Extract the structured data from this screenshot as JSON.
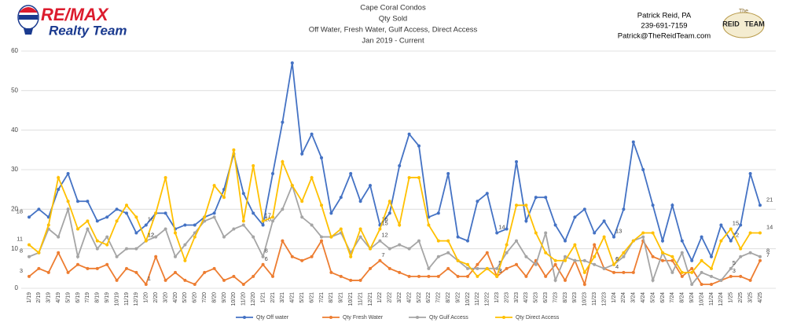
{
  "header": {
    "logo_brand": "RE/MAX",
    "logo_team": "Realty Team",
    "contact_name": "Patrick Reid, PA",
    "contact_phone": "239-691-7159",
    "contact_email": "Patrick@TheReidTeam.com",
    "badge_the": "The",
    "badge_name": "REID",
    "badge_team": "TEAM"
  },
  "chart_data": {
    "type": "line",
    "title": "Cape Coral Condos",
    "subtitle": [
      "Qty Sold",
      "Off Water, Fresh Water, Gulf Access, Direct Access",
      "Jan 2019 - Current"
    ],
    "categories": [
      "1/19",
      "2/19",
      "3/19",
      "4/19",
      "5/19",
      "6/19",
      "7/19",
      "8/19",
      "9/19",
      "10/19",
      "11/19",
      "12/19",
      "1/20",
      "2/20",
      "3/20",
      "4/20",
      "5/20",
      "6/20",
      "7/20",
      "8/20",
      "9/20",
      "10/20",
      "11/20",
      "12/20",
      "1/21",
      "2/21",
      "3/21",
      "4/21",
      "5/21",
      "6/21",
      "7/21",
      "8/21",
      "9/21",
      "10/21",
      "11/21",
      "12/21",
      "1/22",
      "2/22",
      "3/22",
      "4/22",
      "5/22",
      "6/22",
      "7/22",
      "8/22",
      "9/22",
      "10/22",
      "11/22",
      "12/22",
      "1/23",
      "2/23",
      "3/23",
      "4/23",
      "5/23",
      "6/23",
      "7/23",
      "8/23",
      "9/23",
      "10/23",
      "11/23",
      "12/23",
      "1/24",
      "2/24",
      "3/24",
      "4/24",
      "5/24",
      "6/24",
      "7/24",
      "8/24",
      "9/24",
      "10/24",
      "11/24",
      "12/24",
      "1/25",
      "2/25",
      "3/25",
      "4/25"
    ],
    "series": [
      {
        "name": "Qty Off water",
        "color": "#4472c4",
        "values": [
          18,
          20,
          18,
          25,
          29,
          22,
          22,
          17,
          18,
          20,
          19,
          14,
          16,
          19,
          19,
          15,
          16,
          16,
          18,
          19,
          25,
          34,
          24,
          19,
          16,
          29,
          42,
          57,
          34,
          39,
          33,
          19,
          23,
          29,
          22,
          26,
          16,
          19,
          31,
          39,
          36,
          18,
          19,
          29,
          13,
          12,
          22,
          24,
          14,
          15,
          32,
          17,
          23,
          23,
          16,
          12,
          18,
          20,
          14,
          17,
          13,
          20,
          37,
          30,
          21,
          12,
          21,
          12,
          7,
          13,
          8,
          16,
          12,
          16,
          29,
          21
        ]
      },
      {
        "name": "Qty Fresh Water",
        "color": "#ed7d31",
        "values": [
          3,
          5,
          4,
          9,
          4,
          6,
          5,
          5,
          6,
          2,
          5,
          4,
          1,
          8,
          2,
          4,
          2,
          1,
          4,
          5,
          2,
          3,
          1,
          3,
          6,
          3,
          12,
          8,
          7,
          8,
          12,
          4,
          3,
          2,
          2,
          5,
          7,
          5,
          4,
          3,
          3,
          3,
          3,
          5,
          3,
          3,
          6,
          9,
          3,
          5,
          6,
          3,
          7,
          3,
          6,
          2,
          7,
          1,
          11,
          5,
          4,
          4,
          4,
          12,
          8,
          7,
          7,
          3,
          5,
          1,
          1,
          2,
          3,
          3,
          2,
          7
        ]
      },
      {
        "name": "Qty Gulf Access",
        "color": "#a5a5a5",
        "values": [
          8,
          9,
          15,
          13,
          20,
          8,
          15,
          10,
          13,
          8,
          10,
          10,
          12,
          13,
          15,
          8,
          11,
          14,
          17,
          18,
          13,
          15,
          16,
          13,
          8,
          17,
          20,
          26,
          18,
          16,
          13,
          13,
          14,
          9,
          13,
          10,
          12,
          10,
          11,
          10,
          12,
          5,
          8,
          9,
          7,
          5,
          5,
          5,
          5,
          9,
          12,
          8,
          6,
          14,
          2,
          8,
          7,
          7,
          6,
          5,
          6,
          8,
          12,
          13,
          2,
          9,
          4,
          9,
          1,
          4,
          3,
          2,
          5,
          8,
          9,
          8
        ]
      },
      {
        "name": "Qty Direct Access",
        "color": "#ffc000",
        "values": [
          11,
          9,
          16,
          28,
          22,
          15,
          17,
          12,
          11,
          17,
          21,
          18,
          12,
          19,
          28,
          14,
          7,
          13,
          18,
          26,
          23,
          35,
          17,
          31,
          17,
          18,
          32,
          26,
          22,
          28,
          21,
          13,
          15,
          8,
          15,
          10,
          15,
          22,
          16,
          28,
          28,
          16,
          12,
          12,
          7,
          6,
          3,
          5,
          3,
          11,
          21,
          21,
          14,
          9,
          7,
          7,
          11,
          4,
          8,
          13,
          6,
          9,
          12,
          14,
          14,
          9,
          8,
          4,
          4,
          7,
          5,
          12,
          15,
          10,
          14,
          14
        ]
      }
    ],
    "ylim": [
      0,
      60
    ],
    "yticks": [
      0,
      10,
      20,
      30,
      40,
      50,
      60
    ],
    "grid": true,
    "legend": "bottom"
  }
}
